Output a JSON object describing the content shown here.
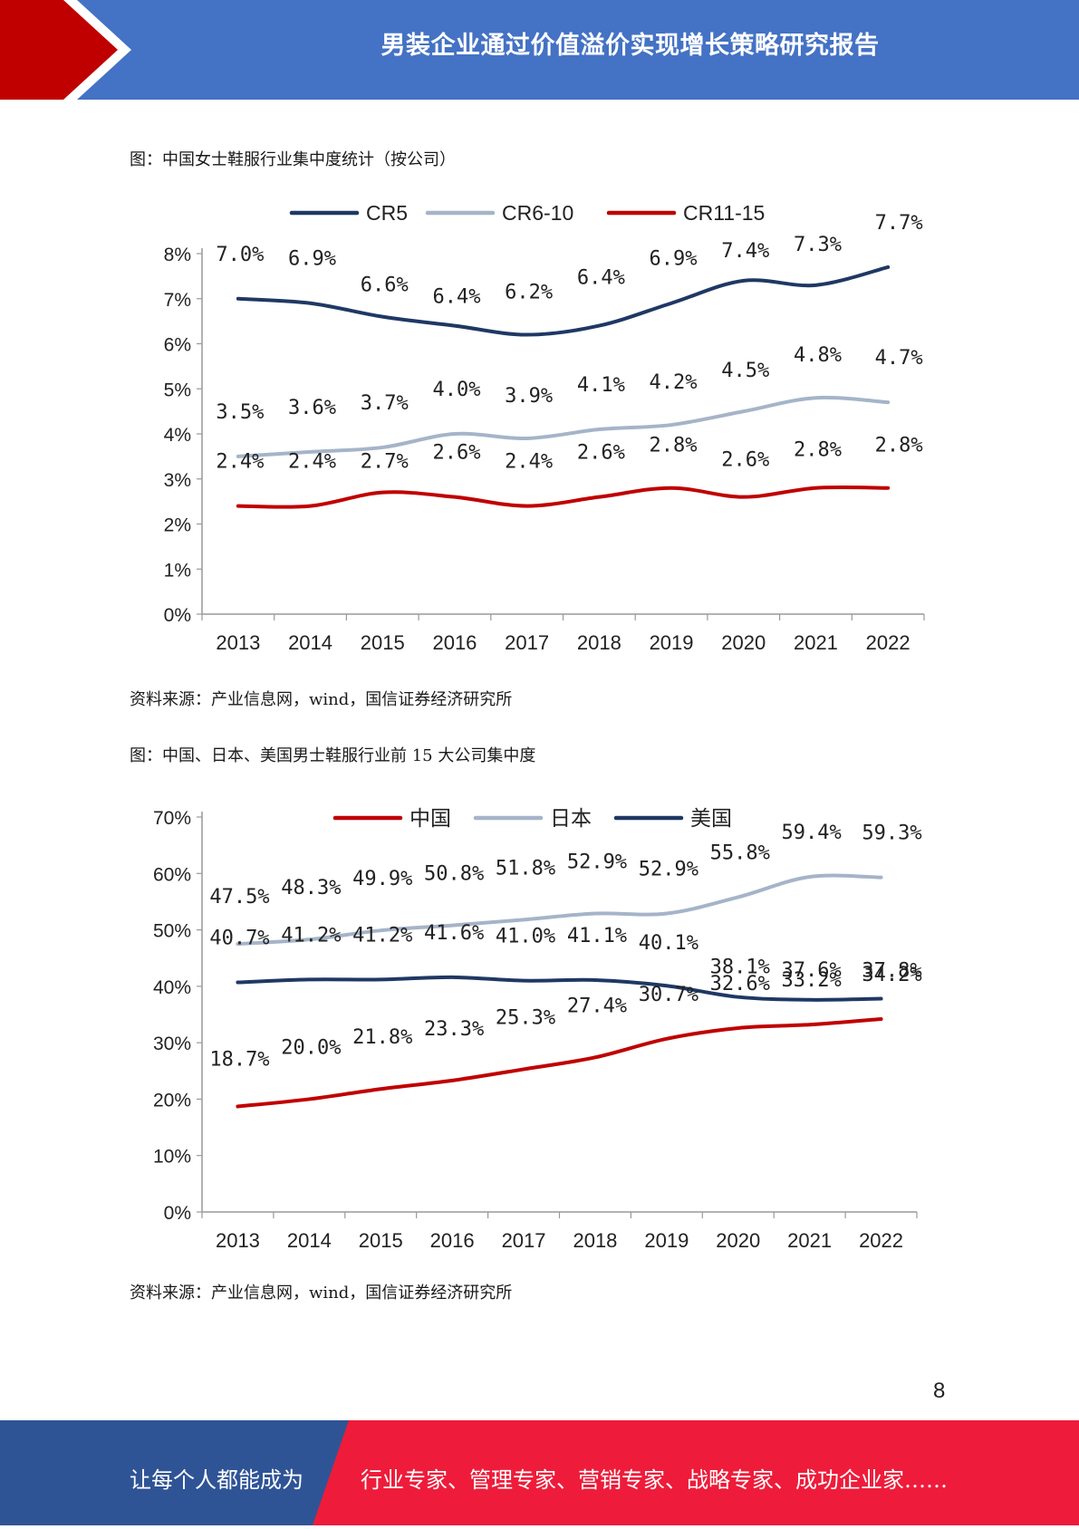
{
  "header": {
    "title": "男装企业通过价值溢价实现增长策略研究报告",
    "colors": {
      "band": "#4472c4",
      "accent_red": "#c00000"
    }
  },
  "figure1": {
    "caption": "图：中国女士鞋服行业集中度统计（按公司）",
    "source": "资料来源：产业信息网，wind，国信证券经济研究所"
  },
  "figure2": {
    "caption": "图：中国、日本、美国男士鞋服行业前 15 大公司集中度",
    "source": "资料来源：产业信息网，wind，国信证券经济研究所"
  },
  "page_number": "8",
  "footer": {
    "left_text": "让每个人都能成为",
    "right_text": "行业专家、管理专家、营销专家、战略专家、成功企业家……",
    "colors": {
      "left": "#2f5496",
      "right": "#ee1c3a"
    }
  },
  "chart_data": [
    {
      "type": "line",
      "x": [
        "2013",
        "2014",
        "2015",
        "2016",
        "2017",
        "2018",
        "2019",
        "2020",
        "2021",
        "2022"
      ],
      "ylim": [
        0,
        8
      ],
      "yticks": [
        "0%",
        "1%",
        "2%",
        "3%",
        "4%",
        "5%",
        "6%",
        "7%",
        "8%"
      ],
      "legend_position": "top",
      "grid": false,
      "series": [
        {
          "name": "CR5",
          "color": "#1f3864",
          "values": [
            7.0,
            6.9,
            6.6,
            6.4,
            6.2,
            6.4,
            6.9,
            7.4,
            7.3,
            7.7
          ],
          "labels": [
            "7.0%",
            "6.9%",
            "6.6%",
            "6.4%",
            "6.2%",
            "6.4%",
            "6.9%",
            "7.4%",
            "7.3%",
            "7.7%"
          ]
        },
        {
          "name": "CR6-10",
          "color": "#a5b4c8",
          "values": [
            3.5,
            3.6,
            3.7,
            4.0,
            3.9,
            4.1,
            4.2,
            4.5,
            4.8,
            4.7
          ],
          "labels": [
            "3.5%",
            "3.6%",
            "3.7%",
            "4.0%",
            "3.9%",
            "4.1%",
            "4.2%",
            "4.5%",
            "4.8%",
            "4.7%"
          ]
        },
        {
          "name": "CR11-15",
          "color": "#c00000",
          "values": [
            2.4,
            2.4,
            2.7,
            2.6,
            2.4,
            2.6,
            2.8,
            2.6,
            2.8,
            2.8
          ],
          "labels": [
            "2.4%",
            "2.4%",
            "2.7%",
            "2.6%",
            "2.4%",
            "2.6%",
            "2.8%",
            "2.6%",
            "2.8%",
            "2.8%"
          ]
        }
      ]
    },
    {
      "type": "line",
      "x": [
        "2013",
        "2014",
        "2015",
        "2016",
        "2017",
        "2018",
        "2019",
        "2020",
        "2021",
        "2022"
      ],
      "ylim": [
        0,
        70
      ],
      "yticks": [
        "0%",
        "10%",
        "20%",
        "30%",
        "40%",
        "50%",
        "60%",
        "70%"
      ],
      "legend_position": "top",
      "grid": false,
      "series": [
        {
          "name": "中国",
          "color": "#c00000",
          "values": [
            18.7,
            20.0,
            21.8,
            23.3,
            25.3,
            27.4,
            30.7,
            32.6,
            33.2,
            34.2
          ],
          "labels": [
            "18.7%",
            "20.0%",
            "21.8%",
            "23.3%",
            "25.3%",
            "27.4%",
            "30.7%",
            "32.6%",
            "33.2%",
            "34.2%"
          ]
        },
        {
          "name": "日本",
          "color": "#a5b4c8",
          "values": [
            47.5,
            48.3,
            49.9,
            50.8,
            51.8,
            52.9,
            52.9,
            55.8,
            59.4,
            59.3
          ],
          "labels": [
            "47.5%",
            "48.3%",
            "49.9%",
            "50.8%",
            "51.8%",
            "52.9%",
            "52.9%",
            "55.8%",
            "59.4%",
            "59.3%"
          ]
        },
        {
          "name": "美国",
          "color": "#1f3864",
          "values": [
            40.7,
            41.2,
            41.2,
            41.6,
            41.0,
            41.1,
            40.1,
            38.1,
            37.6,
            37.8
          ],
          "labels": [
            "40.7%",
            "41.2%",
            "41.2%",
            "41.6%",
            "41.0%",
            "41.1%",
            "40.1%",
            "38.1%",
            "37.6%",
            "37.8%"
          ]
        }
      ]
    }
  ]
}
